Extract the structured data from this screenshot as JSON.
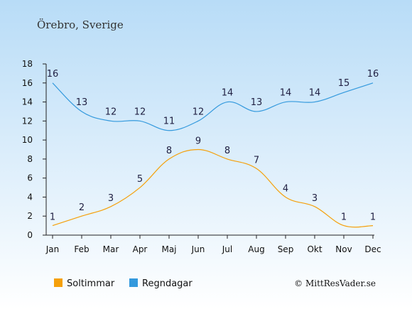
{
  "chart_data": {
    "type": "line",
    "title": "Örebro, Sverige",
    "categories": [
      "Jan",
      "Feb",
      "Mar",
      "Apr",
      "Maj",
      "Jun",
      "Jul",
      "Aug",
      "Sep",
      "Okt",
      "Nov",
      "Dec"
    ],
    "series": [
      {
        "name": "Soltimmar",
        "color": "#f5a00a",
        "values": [
          1,
          2,
          3,
          5,
          8,
          9,
          8,
          7,
          4,
          3,
          1,
          1
        ]
      },
      {
        "name": "Regndagar",
        "color": "#3399dd",
        "values": [
          16,
          13,
          12,
          12,
          11,
          12,
          14,
          13,
          14,
          14,
          15,
          16
        ]
      }
    ],
    "ylim": [
      0,
      18
    ],
    "yticks": [
      "0",
      "2",
      "4",
      "6",
      "8",
      "10",
      "12",
      "14",
      "16",
      "18"
    ],
    "grid": false,
    "legend": "bottom-left",
    "credit": "© MittResVader.se",
    "colors": {
      "background_top": "#b8dcf7",
      "background_bottom": "#ffffff"
    }
  }
}
